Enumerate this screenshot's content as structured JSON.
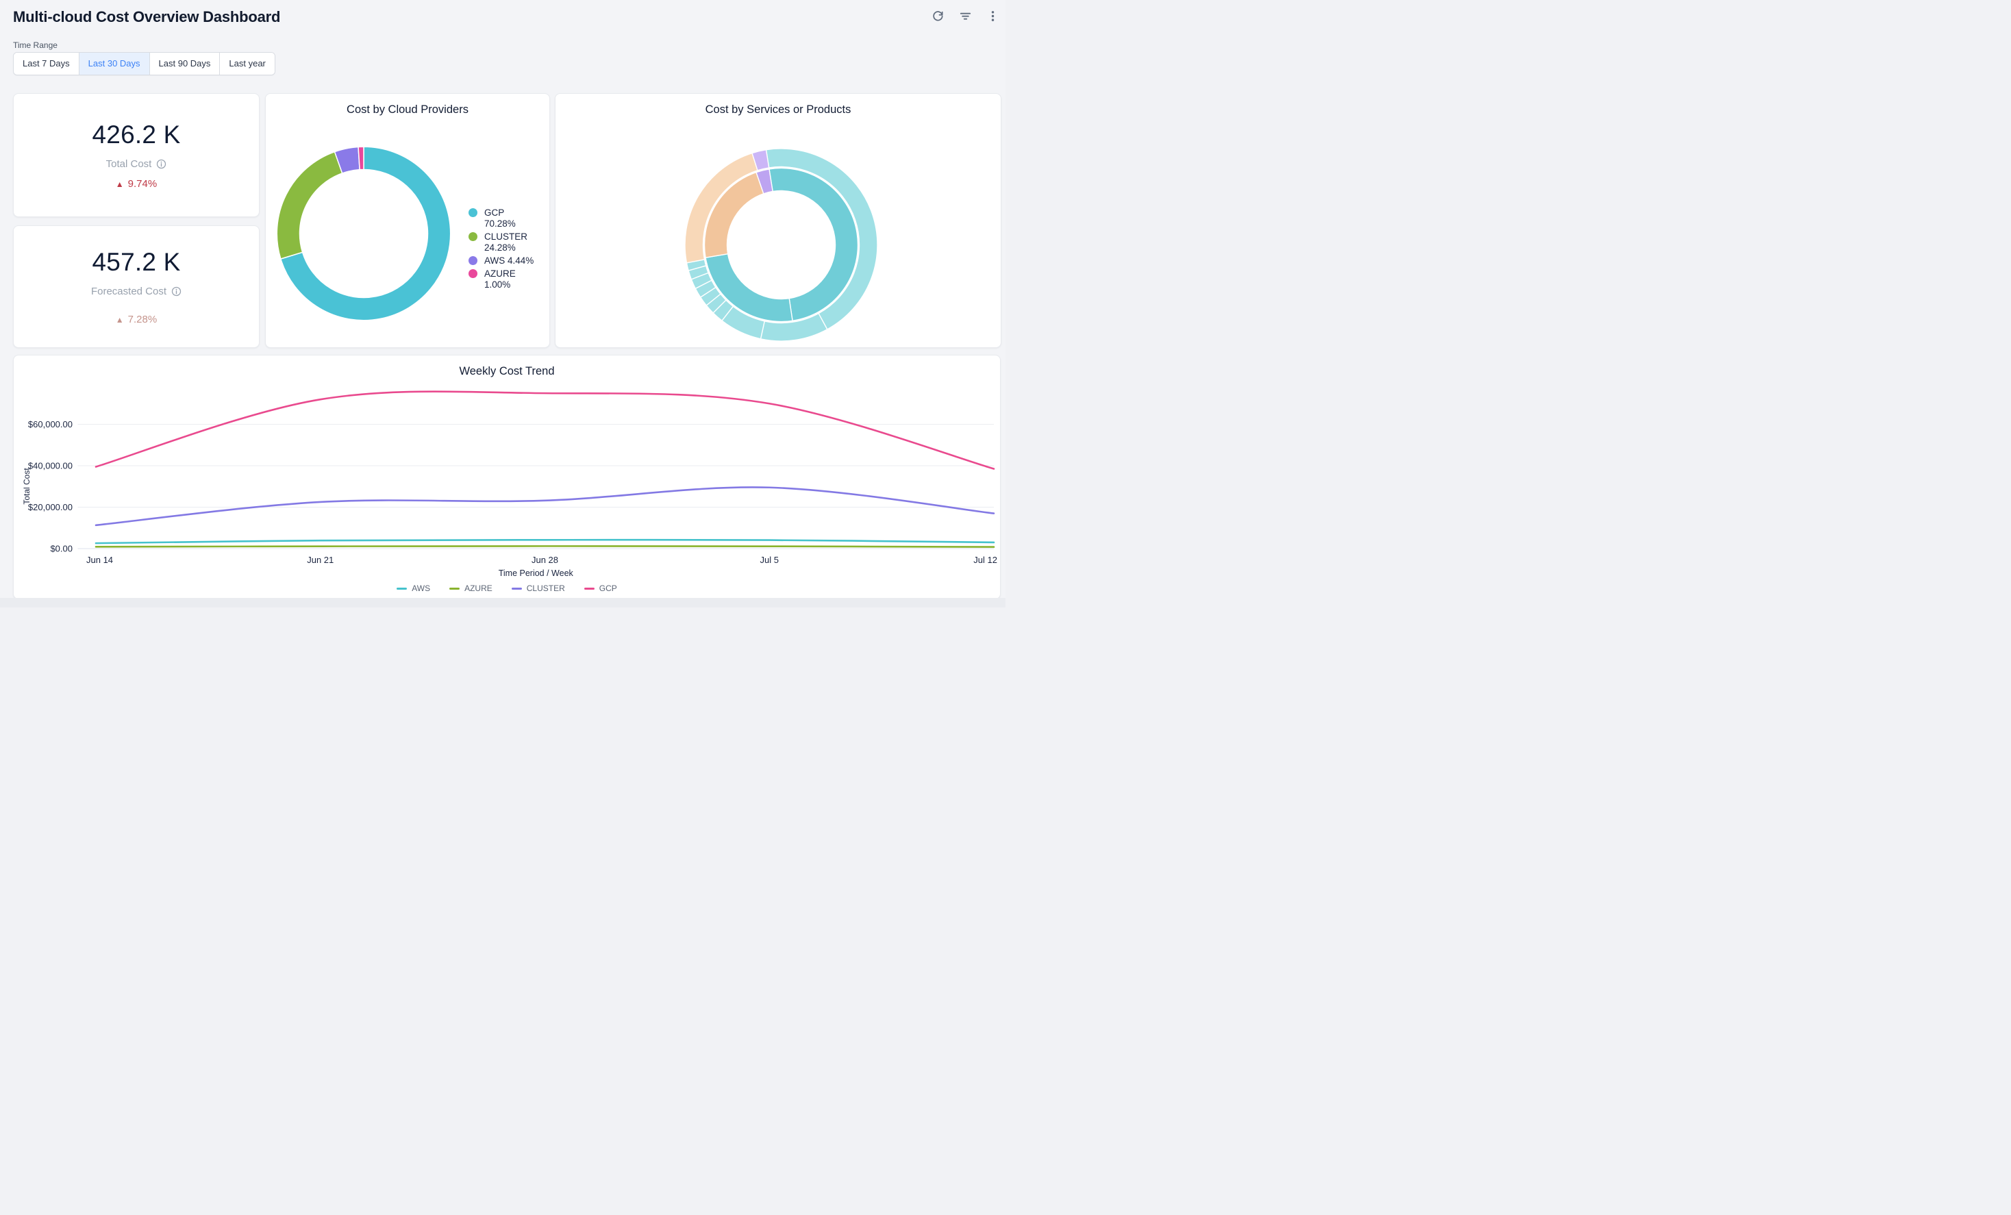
{
  "header": {
    "title": "Multi-cloud Cost Overview Dashboard",
    "actions": [
      {
        "icon": "refresh-icon"
      },
      {
        "icon": "filter-icon"
      },
      {
        "icon": "kebab-menu-icon"
      }
    ]
  },
  "time_range": {
    "label": "Time Range",
    "options": [
      "Last 7 Days",
      "Last 30 Days",
      "Last 90 Days",
      "Last year"
    ],
    "selected": "Last 30 Days",
    "selected_index": 1,
    "active_text_color": "#3d82f6",
    "active_bg_color": "#e7f0fd"
  },
  "kpis": [
    {
      "value": "426.2 K",
      "label": "Total Cost",
      "delta_arrow": "▲",
      "delta": "9.74%",
      "delta_color": "#bf3a47"
    },
    {
      "value": "457.2 K",
      "label": "Forecasted Cost",
      "delta_arrow": "▲",
      "delta": "7.28%",
      "delta_color": "#c5948c"
    }
  ],
  "chart_data": [
    {
      "id": "cost-by-cloud-providers",
      "type": "pie",
      "subtype": "donut",
      "title": "Cost by Cloud Providers",
      "legend_position": "right",
      "slices": [
        {
          "label": "GCP",
          "value_pct": 70.28,
          "color": "#4ac2d5",
          "legend": "GCP 70.28%"
        },
        {
          "label": "CLUSTER",
          "value_pct": 24.28,
          "color": "#8aba40",
          "legend": "CLUSTER 24.28%"
        },
        {
          "label": "AWS",
          "value_pct": 4.44,
          "color": "#8a7ae8",
          "legend": "AWS 4.44%"
        },
        {
          "label": "AZURE",
          "value_pct": 1.0,
          "color": "#e9489b",
          "legend": "AZURE 1.00%"
        }
      ]
    },
    {
      "id": "cost-by-services-or-products",
      "type": "pie",
      "subtype": "sunburst",
      "title": "Cost by Services or Products",
      "labels_shown": false,
      "colors": {
        "teal_inner": "#70cdd7",
        "teal_outer": "#9fe0e5",
        "peach_inner": "#f2c59c",
        "peach_outer": "#f8d8b8",
        "purple_inner": "#bda4f1",
        "purple_outer": "#cbb6f7"
      },
      "rings": {
        "inner": [
          {
            "color": "teal_inner",
            "start_deg": -9,
            "end_deg": 171.5
          },
          {
            "color": "teal_inner",
            "start_deg": 171.5,
            "end_deg": 260.4
          },
          {
            "color": "peach_inner",
            "start_deg": 260.4,
            "end_deg": 341
          },
          {
            "color": "purple_inner",
            "start_deg": 341,
            "end_deg": 351
          }
        ],
        "outer": [
          {
            "color": "teal_outer",
            "start_deg": -9,
            "end_deg": 151.4
          },
          {
            "color": "teal_outer",
            "start_deg": 151.4,
            "end_deg": 192.3
          },
          {
            "color": "teal_outer",
            "start_deg": 192.3,
            "end_deg": 218
          },
          {
            "color": "teal_outer",
            "start_deg": 218,
            "end_deg": 225
          },
          {
            "color": "teal_outer",
            "start_deg": 225,
            "end_deg": 231
          },
          {
            "color": "teal_outer",
            "start_deg": 231,
            "end_deg": 237
          },
          {
            "color": "teal_outer",
            "start_deg": 237,
            "end_deg": 243
          },
          {
            "color": "teal_outer",
            "start_deg": 243,
            "end_deg": 249
          },
          {
            "color": "teal_outer",
            "start_deg": 249,
            "end_deg": 254.5
          },
          {
            "color": "teal_outer",
            "start_deg": 254.5,
            "end_deg": 259.2
          },
          {
            "color": "peach_outer",
            "start_deg": 259.2,
            "end_deg": 342.4
          },
          {
            "color": "purple_outer",
            "start_deg": 342.4,
            "end_deg": 351
          }
        ]
      }
    },
    {
      "id": "weekly-cost-trend",
      "type": "line",
      "title": "Weekly Cost Trend",
      "xlabel": "Time Period / Week",
      "ylabel": "Total Cost",
      "x": [
        "Jun 14",
        "Jun 21",
        "Jun 28",
        "Jul 5",
        "Jul 12"
      ],
      "yticks": [
        {
          "label": "$0.00",
          "value": 0
        },
        {
          "label": "$20,000.00",
          "value": 20000
        },
        {
          "label": "$40,000.00",
          "value": 40000
        },
        {
          "label": "$60,000.00",
          "value": 60000
        }
      ],
      "ylim": [
        0,
        80000
      ],
      "grid": true,
      "legend_position": "bottom",
      "series": [
        {
          "name": "AWS",
          "color": "#45c2cc",
          "values": [
            2600,
            3900,
            4200,
            4100,
            3000
          ]
        },
        {
          "name": "AZURE",
          "color": "#8ab32e",
          "values": [
            900,
            1100,
            1200,
            1100,
            800
          ]
        },
        {
          "name": "CLUSTER",
          "color": "#8379e4",
          "values": [
            11300,
            22500,
            23200,
            29500,
            17000
          ]
        },
        {
          "name": "GCP",
          "color": "#e94a8e",
          "values": [
            39500,
            72000,
            75000,
            70000,
            38500
          ]
        }
      ]
    }
  ]
}
